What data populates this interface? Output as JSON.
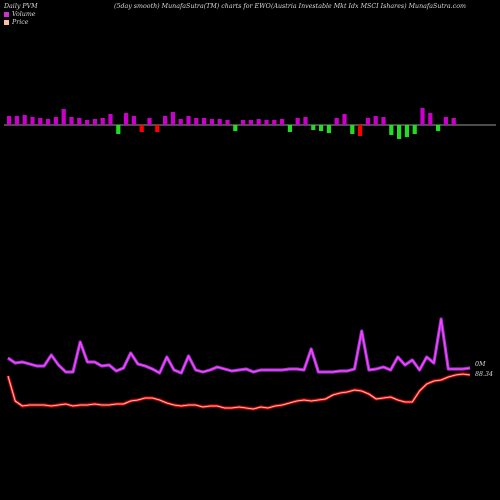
{
  "header": {
    "left": "Daily PVM",
    "middle": "(5day smooth) MunafaSutra(TM) charts for EWO",
    "right": "(Austria Investable Mkt Idx MSCI Ishares) MunafaSutra.com"
  },
  "legend": [
    {
      "label": "Volume",
      "color": "#cc33cc"
    },
    {
      "label": "Price",
      "color": "#ffbbaa"
    }
  ],
  "chart_data": {
    "type": "line",
    "volume_bars": [
      {
        "value": 9,
        "color": "#cc00cc"
      },
      {
        "value": 9,
        "color": "#cc00cc"
      },
      {
        "value": 10,
        "color": "#cc00cc"
      },
      {
        "value": 8,
        "color": "#cc00cc"
      },
      {
        "value": 7,
        "color": "#cc00cc"
      },
      {
        "value": 6,
        "color": "#cc00cc"
      },
      {
        "value": 8,
        "color": "#cc00cc"
      },
      {
        "value": 16,
        "color": "#cc00cc"
      },
      {
        "value": 8,
        "color": "#cc00cc"
      },
      {
        "value": 7,
        "color": "#cc00cc"
      },
      {
        "value": 5,
        "color": "#cc00cc"
      },
      {
        "value": 6,
        "color": "#cc00cc"
      },
      {
        "value": 7,
        "color": "#cc00cc"
      },
      {
        "value": 11,
        "color": "#cc00cc"
      },
      {
        "value": -9,
        "color": "#22dd22"
      },
      {
        "value": 12,
        "color": "#cc00cc"
      },
      {
        "value": 9,
        "color": "#cc00cc"
      },
      {
        "value": -7,
        "color": "#ff0000"
      },
      {
        "value": 7,
        "color": "#cc00cc"
      },
      {
        "value": -7,
        "color": "#ff0000"
      },
      {
        "value": 9,
        "color": "#cc00cc"
      },
      {
        "value": 13,
        "color": "#cc00cc"
      },
      {
        "value": 6,
        "color": "#cc00cc"
      },
      {
        "value": 9,
        "color": "#cc00cc"
      },
      {
        "value": 7,
        "color": "#cc00cc"
      },
      {
        "value": 7,
        "color": "#cc00cc"
      },
      {
        "value": 6,
        "color": "#cc00cc"
      },
      {
        "value": 6,
        "color": "#cc00cc"
      },
      {
        "value": 5,
        "color": "#cc00cc"
      },
      {
        "value": -6,
        "color": "#22dd22"
      },
      {
        "value": 5,
        "color": "#cc00cc"
      },
      {
        "value": 5,
        "color": "#cc00cc"
      },
      {
        "value": 6,
        "color": "#cc00cc"
      },
      {
        "value": 5,
        "color": "#cc00cc"
      },
      {
        "value": 5,
        "color": "#cc00cc"
      },
      {
        "value": 6,
        "color": "#cc00cc"
      },
      {
        "value": -7,
        "color": "#22dd22"
      },
      {
        "value": 7,
        "color": "#cc00cc"
      },
      {
        "value": 8,
        "color": "#cc00cc"
      },
      {
        "value": -5,
        "color": "#22dd22"
      },
      {
        "value": -6,
        "color": "#22dd22"
      },
      {
        "value": -8,
        "color": "#22dd22"
      },
      {
        "value": 7,
        "color": "#cc00cc"
      },
      {
        "value": 11,
        "color": "#cc00cc"
      },
      {
        "value": -9,
        "color": "#22dd22"
      },
      {
        "value": -11,
        "color": "#ff0000"
      },
      {
        "value": 7,
        "color": "#cc00cc"
      },
      {
        "value": 9,
        "color": "#cc00cc"
      },
      {
        "value": 8,
        "color": "#cc00cc"
      },
      {
        "value": -10,
        "color": "#22dd22"
      },
      {
        "value": -14,
        "color": "#22dd22"
      },
      {
        "value": -12,
        "color": "#22dd22"
      },
      {
        "value": -9,
        "color": "#22dd22"
      },
      {
        "value": 17,
        "color": "#cc00cc"
      },
      {
        "value": 12,
        "color": "#cc00cc"
      },
      {
        "value": -6,
        "color": "#22dd22"
      },
      {
        "value": 8,
        "color": "#cc00cc"
      },
      {
        "value": 7,
        "color": "#cc00cc"
      }
    ],
    "volume_line": [
      358,
      363,
      362,
      364,
      366,
      366,
      355,
      365,
      372,
      372,
      342,
      362,
      362,
      366,
      365,
      371,
      368,
      353,
      364,
      366,
      369,
      373,
      357,
      370,
      373,
      356,
      370,
      372,
      370,
      367,
      369,
      371,
      370,
      369,
      372,
      370,
      370,
      370,
      370,
      369,
      369,
      370,
      349,
      372,
      372,
      372,
      371,
      371,
      369,
      331,
      370,
      369,
      367,
      370,
      357,
      365,
      360,
      370,
      357,
      363,
      319,
      369,
      369,
      369,
      368
    ],
    "price_line": [
      376,
      401,
      406,
      405,
      405,
      405,
      406,
      405,
      404,
      406,
      405,
      405,
      404,
      405,
      405,
      404,
      404,
      401,
      400,
      398,
      398,
      400,
      403,
      405,
      406,
      405,
      405,
      407,
      406,
      406,
      408,
      408,
      407,
      408,
      409,
      407,
      408,
      406,
      405,
      403,
      401,
      400,
      401,
      400,
      399,
      395,
      393,
      392,
      390,
      391,
      394,
      399,
      398,
      397,
      400,
      402,
      402,
      391,
      384,
      381,
      380,
      377,
      375,
      374,
      375
    ],
    "price_label": "88.34",
    "volume_label": "0M"
  }
}
